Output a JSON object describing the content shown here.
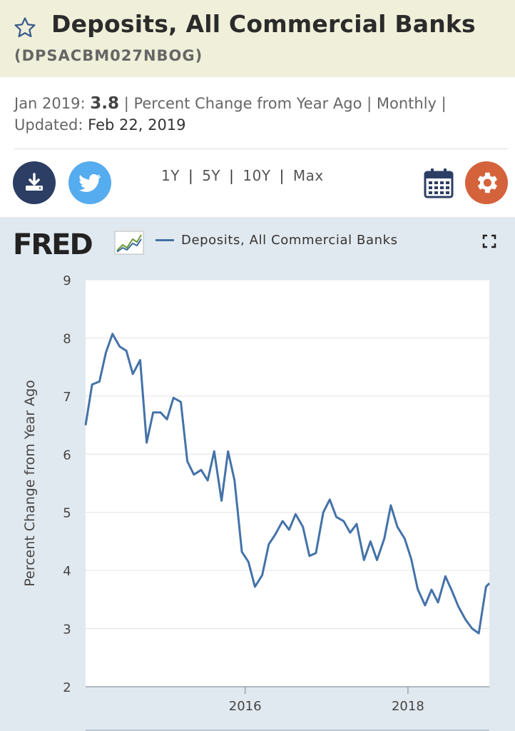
{
  "header": {
    "title": "Deposits, All Commercial Banks",
    "series_id": "(DPSACBM027NBOG)"
  },
  "info": {
    "date_label": "Jan 2019:",
    "value": "3.8",
    "units": "| Percent Change from Year Ago | Monthly |",
    "updated_label": "Updated:",
    "updated_date": "Feb 22, 2019"
  },
  "toolbar": {
    "ranges": [
      "1Y",
      "5Y",
      "10Y",
      "Max"
    ]
  },
  "legend": {
    "label": "Deposits, All Commercial Banks"
  },
  "colors": {
    "line": "#4472a8",
    "panel": "#e1e9f0",
    "download": "#2c3e63",
    "twitter": "#55acee",
    "settings": "#d4633c"
  },
  "chart_data": {
    "type": "line",
    "title": "Deposits, All Commercial Banks",
    "ylabel": "Percent Change from Year Ago",
    "xlabel": "",
    "ylim": [
      2,
      9
    ],
    "yticks": [
      2,
      3,
      4,
      5,
      6,
      7,
      8,
      9
    ],
    "xlim": [
      2014.04,
      2019.0
    ],
    "xticks": [
      {
        "value": 2016.0,
        "label": "2016"
      },
      {
        "value": 2018.0,
        "label": "2018"
      }
    ],
    "series": [
      {
        "name": "Deposits, All Commercial Banks",
        "x": [
          2014.04,
          2014.12,
          2014.21,
          2014.29,
          2014.37,
          2014.46,
          2014.54,
          2014.62,
          2014.71,
          2014.79,
          2014.87,
          2014.96,
          2015.04,
          2015.12,
          2015.21,
          2015.29,
          2015.37,
          2015.46,
          2015.54,
          2015.62,
          2015.71,
          2015.79,
          2015.87,
          2015.96,
          2016.04,
          2016.12,
          2016.21,
          2016.29,
          2016.37,
          2016.46,
          2016.54,
          2016.62,
          2016.71,
          2016.79,
          2016.87,
          2016.96,
          2017.04,
          2017.12,
          2017.21,
          2017.29,
          2017.37,
          2017.46,
          2017.54,
          2017.62,
          2017.71,
          2017.79,
          2017.87,
          2017.96,
          2018.04,
          2018.12,
          2018.21,
          2018.29,
          2018.37,
          2018.46,
          2018.54,
          2018.62,
          2018.71,
          2018.79,
          2018.87,
          2018.96,
          2019.0
        ],
        "values": [
          6.5,
          7.2,
          7.25,
          7.75,
          8.07,
          7.85,
          7.78,
          7.38,
          7.62,
          6.2,
          6.72,
          6.72,
          6.6,
          6.97,
          6.9,
          5.88,
          5.65,
          5.73,
          5.55,
          6.05,
          5.2,
          6.05,
          5.55,
          4.32,
          4.15,
          3.72,
          3.92,
          4.45,
          4.62,
          4.85,
          4.7,
          4.97,
          4.75,
          4.25,
          4.3,
          5.0,
          5.22,
          4.92,
          4.85,
          4.65,
          4.8,
          4.18,
          4.5,
          4.18,
          4.55,
          5.12,
          4.75,
          4.55,
          4.2,
          3.68,
          3.4,
          3.67,
          3.45,
          3.9,
          3.65,
          3.38,
          3.15,
          3.0,
          2.92,
          3.72,
          3.78
        ]
      }
    ]
  }
}
